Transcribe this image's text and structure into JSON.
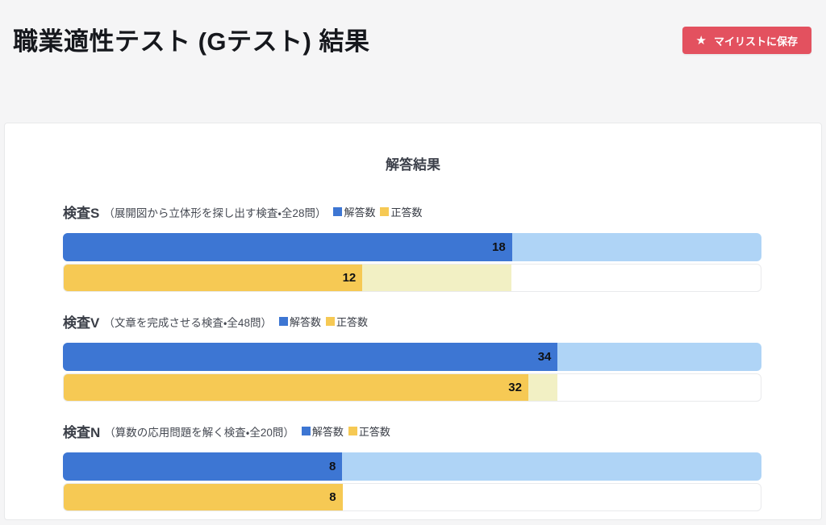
{
  "page": {
    "title": "職業適性テスト (Gテスト) 結果"
  },
  "toolbar": {
    "save_button_label": "マイリストに保存",
    "save_button_icon": "star-icon"
  },
  "card": {
    "heading": "解答結果"
  },
  "colors": {
    "accent_red": "#e3515f",
    "answered_dark": "#3d76d3",
    "answered_light": "#afd4f6",
    "correct_dark": "#f6c954",
    "correct_light": "#f2f0c4",
    "page_background": "#f5f5f6"
  },
  "chart_data": {
    "type": "bar",
    "title": "解答結果",
    "orientation": "horizontal",
    "legend": [
      "解答数",
      "正答数"
    ],
    "legend_colors": [
      "#3d76d3",
      "#f6c954"
    ],
    "sections": [
      {
        "name": "検査S",
        "description": "（展開図から立体形を探し出す検査・全28問）",
        "total": 28,
        "answered": 18,
        "correct": 12
      },
      {
        "name": "検査V",
        "description": "（文章を完成させる検査・全48問）",
        "total": 48,
        "answered": 34,
        "correct": 32
      },
      {
        "name": "検査N",
        "description": "（算数の応用問題を解く検査・全20問）",
        "total": 20,
        "answered": 8,
        "correct": 8
      }
    ]
  }
}
